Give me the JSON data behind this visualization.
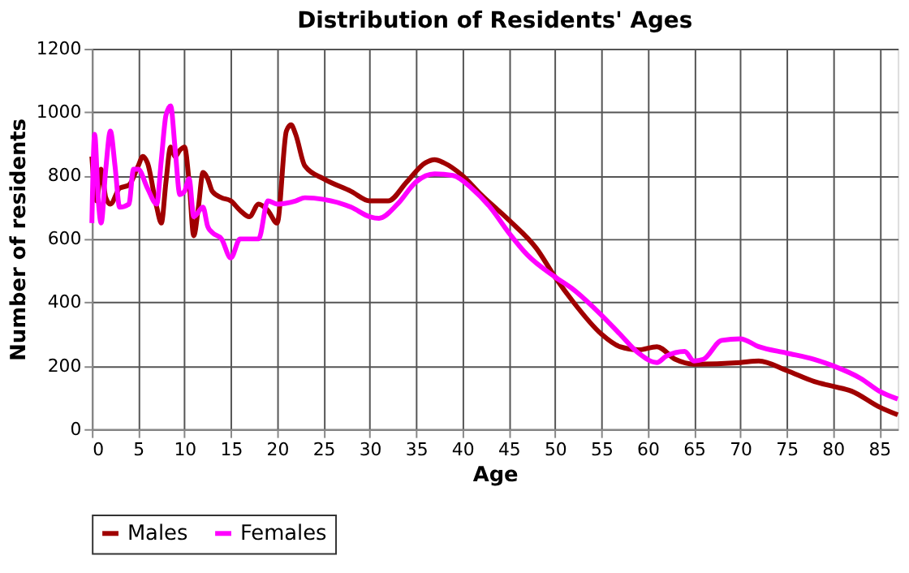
{
  "chart_data": {
    "type": "line",
    "title": "Distribution of Residents' Ages",
    "xlabel": "Age",
    "ylabel": "Number of residents",
    "xlim": [
      0,
      87
    ],
    "xticks": [
      0,
      5,
      10,
      15,
      20,
      25,
      30,
      35,
      40,
      45,
      50,
      55,
      60,
      65,
      70,
      75,
      80,
      85
    ],
    "ylim": [
      0,
      1200
    ],
    "yticks": [
      0,
      200,
      400,
      600,
      800,
      1000,
      1200
    ],
    "grid": true,
    "legend": "bottom",
    "series": [
      {
        "name": "Males",
        "color": "#a00000",
        "x": [
          0,
          0.5,
          1,
          1.5,
          2,
          3,
          4,
          5,
          5.5,
          6,
          7,
          7.5,
          8,
          8.5,
          9,
          9.5,
          10,
          10.5,
          11,
          11.5,
          12,
          12.5,
          13,
          14,
          15,
          16,
          17,
          18,
          19,
          20,
          21,
          21.5,
          22,
          23,
          25,
          28,
          30,
          32,
          34,
          36,
          37,
          38,
          40,
          42,
          45,
          48,
          50,
          52,
          55,
          57,
          59,
          61,
          63,
          65,
          70,
          72,
          75,
          78,
          80,
          82,
          85,
          87
        ],
        "values": [
          860,
          720,
          820,
          730,
          710,
          760,
          770,
          830,
          860,
          840,
          700,
          650,
          780,
          890,
          860,
          880,
          890,
          780,
          610,
          700,
          810,
          790,
          750,
          730,
          720,
          690,
          670,
          710,
          690,
          650,
          940,
          960,
          930,
          830,
          790,
          750,
          720,
          720,
          780,
          840,
          850,
          840,
          800,
          740,
          660,
          570,
          480,
          400,
          300,
          260,
          250,
          260,
          220,
          205,
          210,
          215,
          185,
          150,
          135,
          120,
          70,
          45
        ]
      },
      {
        "name": "Females",
        "color": "#ff00ff",
        "x": [
          0,
          0.3,
          0.7,
          1,
          1.5,
          2,
          2.5,
          3,
          4,
          4.5,
          5,
          6,
          7,
          7.5,
          8,
          8.5,
          9,
          9.5,
          10,
          10.5,
          11,
          12,
          12.5,
          13,
          14,
          15,
          16,
          17,
          18,
          19,
          20,
          22,
          23,
          25,
          28,
          30,
          31,
          33,
          35,
          37,
          39,
          41,
          43,
          45,
          47,
          50,
          52,
          55,
          57,
          59,
          61,
          62,
          64,
          65,
          66,
          68,
          70,
          72,
          75,
          78,
          80,
          83,
          85,
          87
        ],
        "values": [
          650,
          930,
          720,
          650,
          820,
          940,
          830,
          700,
          710,
          820,
          820,
          760,
          710,
          850,
          990,
          1020,
          880,
          740,
          750,
          790,
          670,
          700,
          640,
          620,
          600,
          540,
          600,
          600,
          600,
          720,
          710,
          720,
          730,
          725,
          700,
          670,
          665,
          710,
          780,
          805,
          800,
          760,
          700,
          620,
          550,
          480,
          440,
          360,
          300,
          240,
          210,
          230,
          245,
          215,
          220,
          280,
          285,
          260,
          240,
          220,
          200,
          160,
          120,
          95
        ]
      }
    ]
  }
}
